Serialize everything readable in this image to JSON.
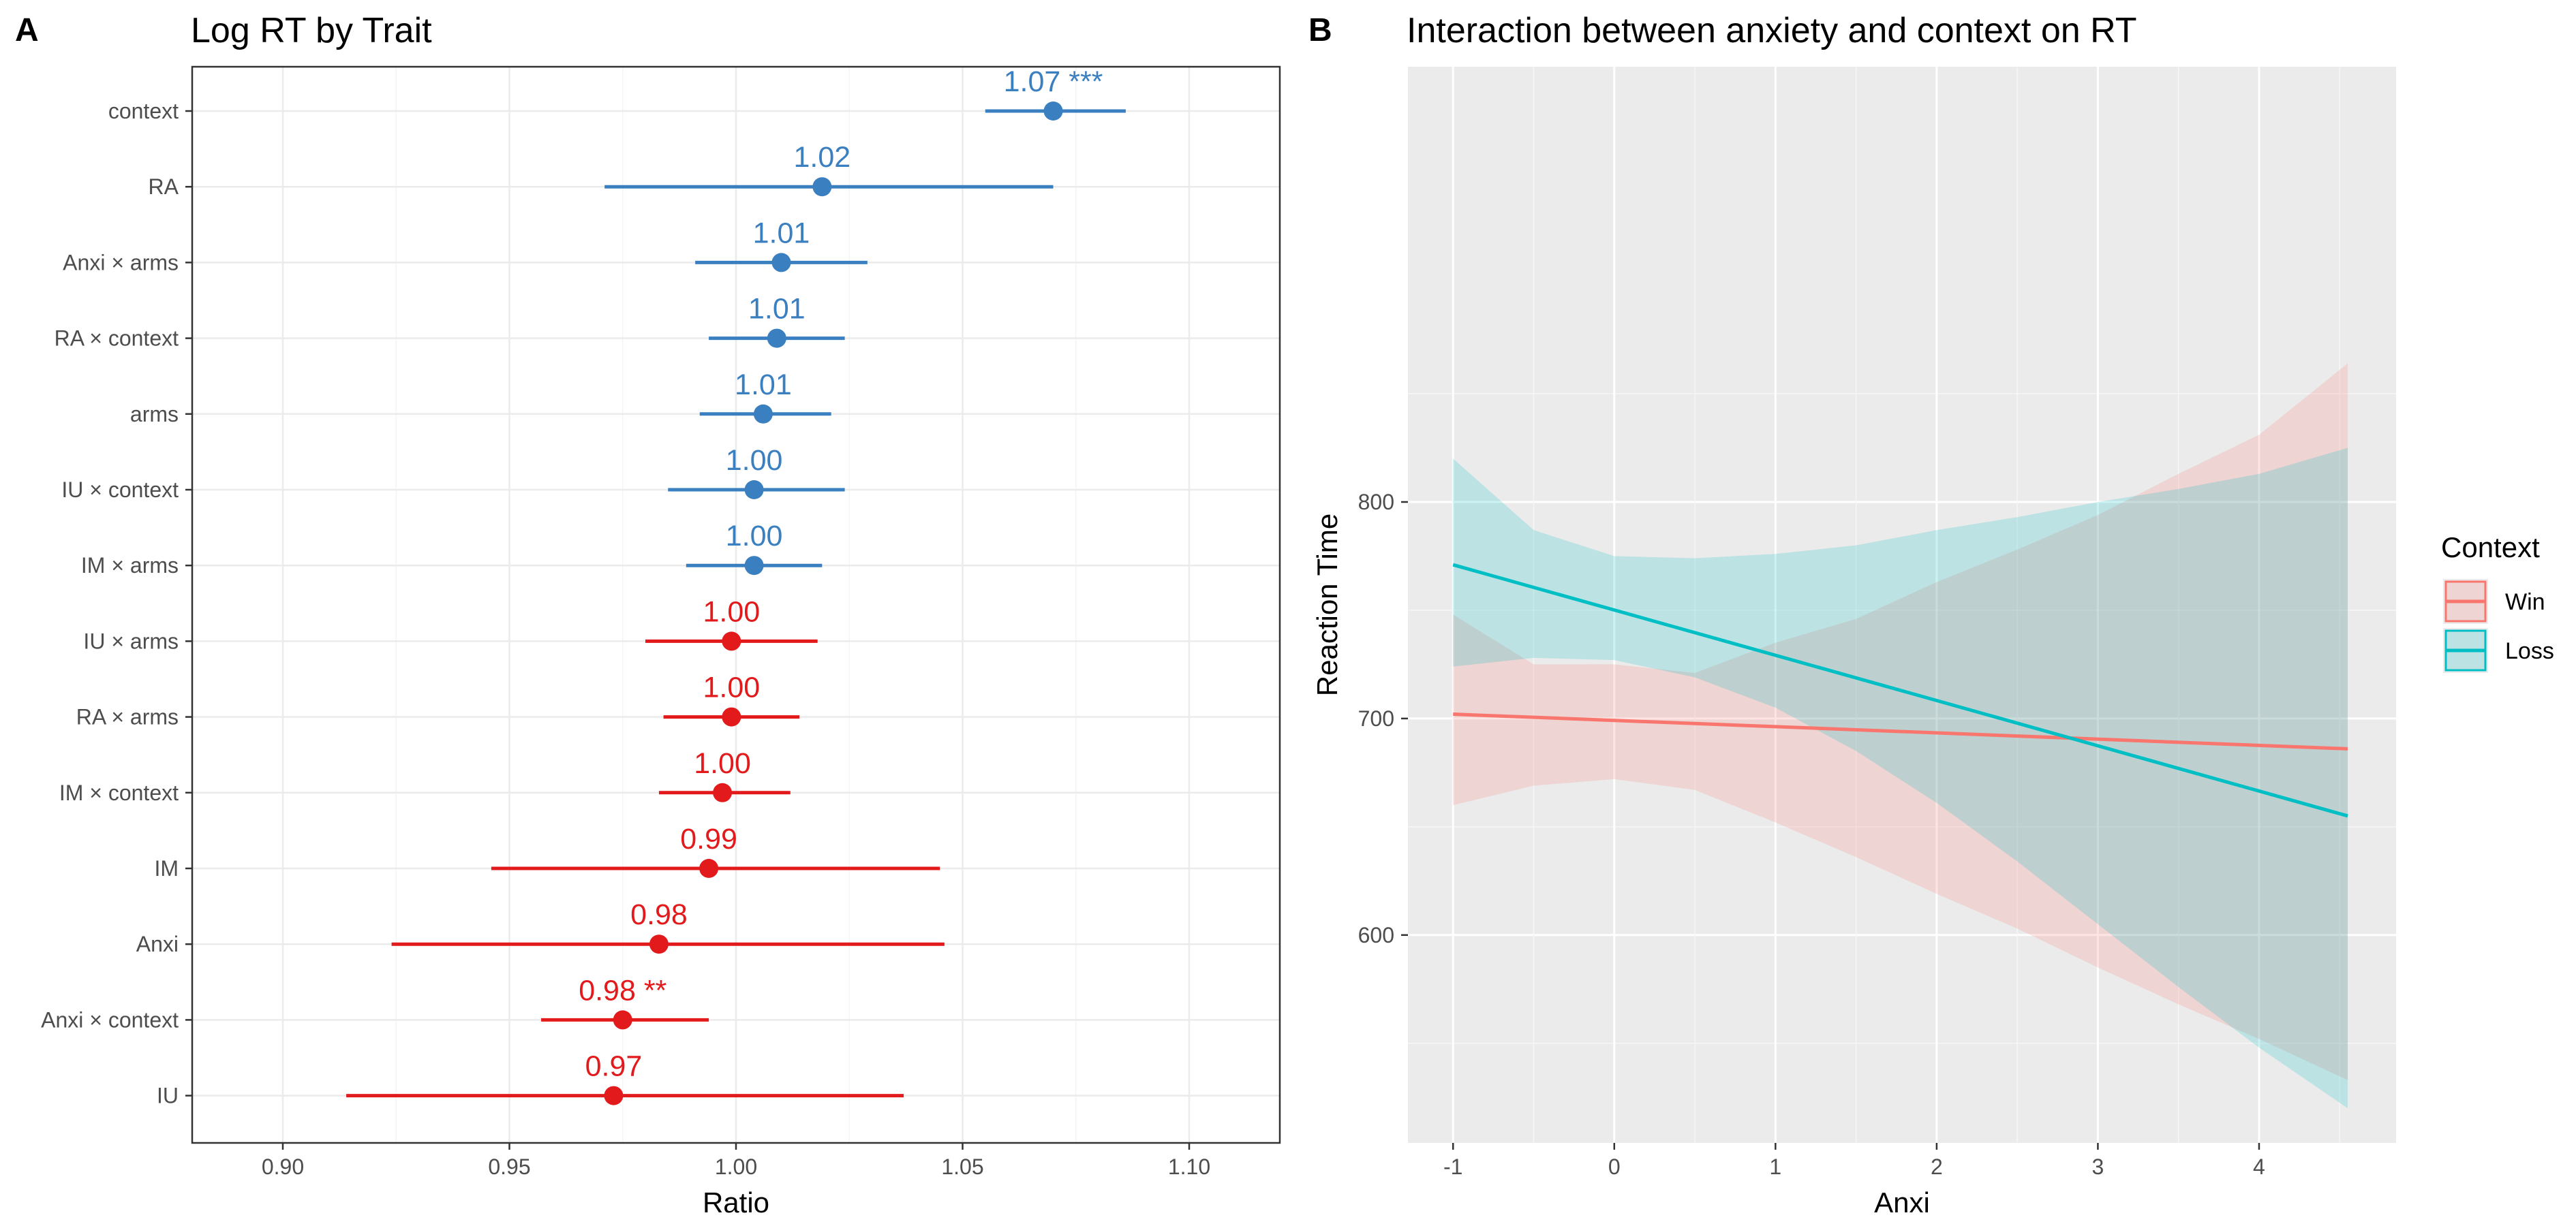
{
  "chart_data": [
    {
      "panel": "A",
      "type": "forest",
      "title": "Log RT by Trait",
      "xlabel": "Ratio",
      "ylabel": "",
      "xlim": [
        0.88,
        1.12
      ],
      "xticks": [
        "0.90",
        "0.95",
        "1.00",
        "1.05",
        "1.10"
      ],
      "grid": true,
      "colors": {
        "positive": "#3a7fc0",
        "negative": "#e31a1c"
      },
      "rows": [
        {
          "term": "context",
          "estimate": 1.07,
          "low": 1.055,
          "high": 1.086,
          "label": "1.07 ***",
          "direction": "positive"
        },
        {
          "term": "RA",
          "estimate": 1.019,
          "low": 0.971,
          "high": 1.07,
          "label": "1.02",
          "direction": "positive"
        },
        {
          "term": "Anxi × arms",
          "estimate": 1.01,
          "low": 0.991,
          "high": 1.029,
          "label": "1.01",
          "direction": "positive"
        },
        {
          "term": "RA × context",
          "estimate": 1.009,
          "low": 0.994,
          "high": 1.024,
          "label": "1.01",
          "direction": "positive"
        },
        {
          "term": "arms",
          "estimate": 1.006,
          "low": 0.992,
          "high": 1.021,
          "label": "1.01",
          "direction": "positive"
        },
        {
          "term": "IU × context",
          "estimate": 1.004,
          "low": 0.985,
          "high": 1.024,
          "label": "1.00",
          "direction": "positive"
        },
        {
          "term": "IM × arms",
          "estimate": 1.004,
          "low": 0.989,
          "high": 1.019,
          "label": "1.00",
          "direction": "positive"
        },
        {
          "term": "IU × arms",
          "estimate": 0.999,
          "low": 0.98,
          "high": 1.018,
          "label": "1.00",
          "direction": "negative"
        },
        {
          "term": "RA × arms",
          "estimate": 0.999,
          "low": 0.984,
          "high": 1.014,
          "label": "1.00",
          "direction": "negative"
        },
        {
          "term": "IM × context",
          "estimate": 0.997,
          "low": 0.983,
          "high": 1.012,
          "label": "1.00",
          "direction": "negative"
        },
        {
          "term": "IM",
          "estimate": 0.994,
          "low": 0.946,
          "high": 1.045,
          "label": "0.99",
          "direction": "negative"
        },
        {
          "term": "Anxi",
          "estimate": 0.983,
          "low": 0.924,
          "high": 1.046,
          "label": "0.98",
          "direction": "negative"
        },
        {
          "term": "Anxi × context",
          "estimate": 0.975,
          "low": 0.957,
          "high": 0.994,
          "label": "0.98 **",
          "direction": "negative"
        },
        {
          "term": "IU",
          "estimate": 0.973,
          "low": 0.914,
          "high": 1.037,
          "label": "0.97",
          "direction": "negative"
        }
      ]
    },
    {
      "panel": "B",
      "type": "line",
      "title": "Interaction between anxiety and context on RT",
      "xlabel": "Anxi",
      "ylabel": "Reaction Time",
      "xlim": [
        -1.28,
        4.85
      ],
      "ylim": [
        504,
        1001
      ],
      "xticks": [
        -1,
        0,
        1,
        2,
        3,
        4
      ],
      "yticks": [
        600,
        700,
        800
      ],
      "grid": true,
      "legend": {
        "title": "Context",
        "position": "right"
      },
      "series": [
        {
          "name": "Win",
          "color": "#f8766d",
          "x": [
            -1,
            4.55
          ],
          "y": [
            702,
            686
          ],
          "ribbon_x": [
            -1,
            -0.5,
            0,
            0.5,
            1,
            1.5,
            2,
            2.5,
            3,
            3.5,
            4,
            4.55
          ],
          "ribbon_low": [
            660,
            669,
            672,
            667,
            652,
            636,
            619,
            603,
            585,
            568,
            552,
            533
          ],
          "ribbon_high": [
            748,
            725,
            725,
            721,
            735,
            746,
            763,
            778,
            794,
            813,
            831,
            864
          ]
        },
        {
          "name": "Loss",
          "color": "#00bfc4",
          "x": [
            -1,
            4.55
          ],
          "y": [
            771,
            655
          ],
          "ribbon_x": [
            -1,
            -0.5,
            0,
            0.5,
            1,
            1.5,
            2,
            2.5,
            3,
            3.5,
            4,
            4.55
          ],
          "ribbon_low": [
            724,
            728,
            727,
            719,
            705,
            685,
            661,
            634,
            605,
            576,
            548,
            520
          ],
          "ribbon_high": [
            820,
            787,
            775,
            774,
            776,
            780,
            787,
            793,
            800,
            806,
            813,
            825
          ]
        }
      ]
    }
  ]
}
